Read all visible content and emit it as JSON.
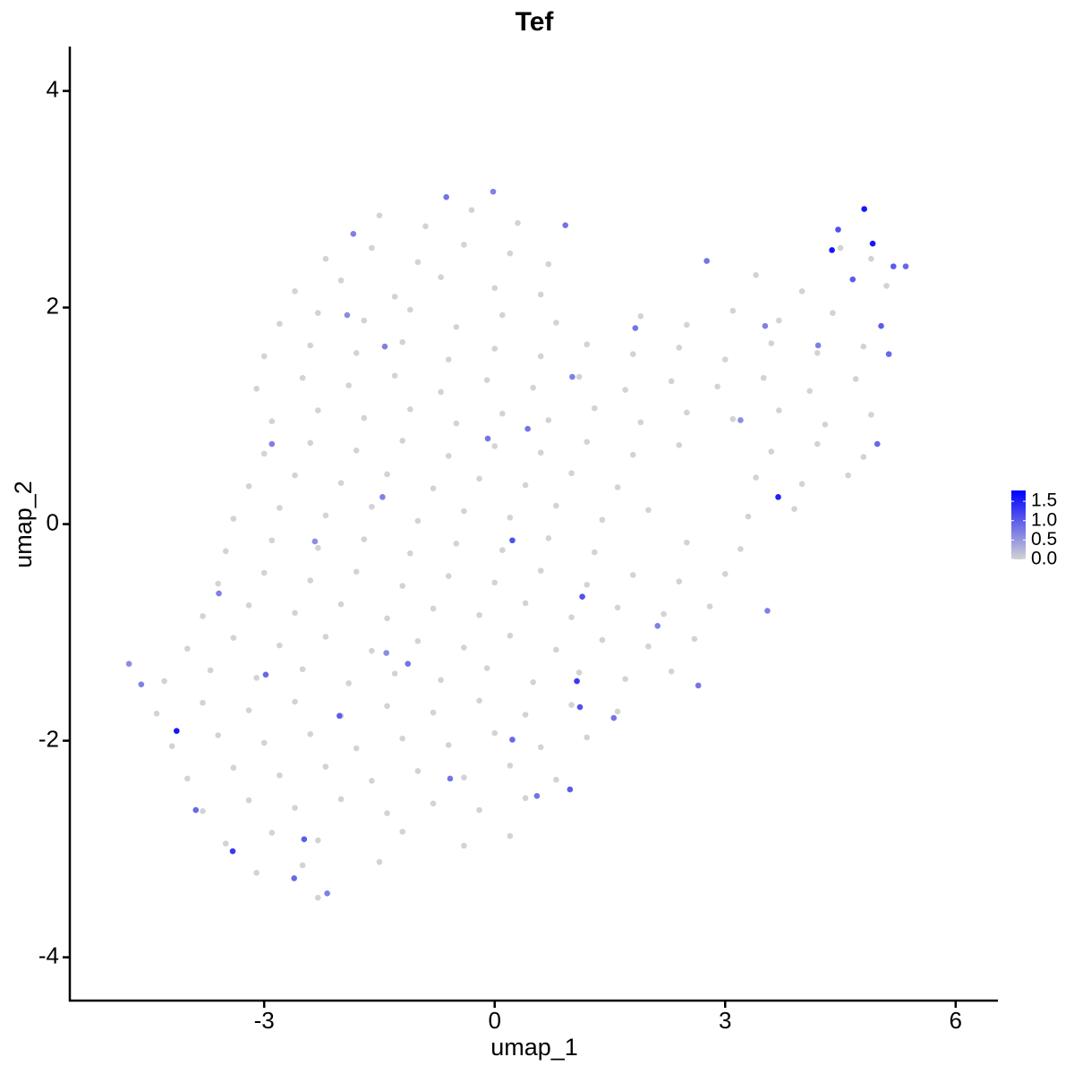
{
  "chart_data": {
    "type": "scatter",
    "title": "Tef",
    "xlabel": "umap_1",
    "ylabel": "umap_2",
    "xlim": [
      -5.53,
      6.55
    ],
    "ylim": [
      -4.4,
      4.41
    ],
    "xticks": [
      -3,
      0,
      3,
      6
    ],
    "yticks": [
      -4,
      -2,
      0,
      2,
      4
    ],
    "color_low": "#d3d3d3",
    "color_high": "#0000ff",
    "color_range": [
      0,
      1.78
    ],
    "colorbar_ticks": [
      {
        "value": 0,
        "label": "0.0"
      },
      {
        "value": 0.5,
        "label": "0.5"
      },
      {
        "value": 1,
        "label": "1.0"
      },
      1.5
    ],
    "x": [
      -1.5,
      -0.9,
      -0.3,
      0.3,
      -2.2,
      -1.6,
      -1.0,
      -0.4,
      0.2,
      0.7,
      4.5,
      4.9,
      -2.6,
      -2.0,
      -1.3,
      -0.7,
      0.0,
      0.6,
      3.4,
      4.0,
      5.1,
      -2.8,
      -2.3,
      -1.7,
      -1.1,
      -0.5,
      0.1,
      0.8,
      1.9,
      2.5,
      3.1,
      3.7,
      4.4,
      -3.0,
      -2.4,
      -1.8,
      -1.2,
      -0.6,
      0.0,
      0.6,
      1.2,
      1.8,
      2.4,
      3.0,
      3.6,
      4.2,
      4.8,
      -3.1,
      -2.5,
      -1.9,
      -1.3,
      -0.7,
      -0.1,
      0.5,
      1.1,
      1.7,
      2.3,
      2.9,
      3.5,
      4.1,
      4.7,
      -2.9,
      -2.3,
      -1.7,
      -1.1,
      -0.5,
      0.1,
      0.7,
      1.3,
      1.9,
      2.5,
      3.1,
      3.7,
      4.3,
      4.9,
      -3.0,
      -2.4,
      -1.8,
      -1.2,
      -0.6,
      0.0,
      0.6,
      1.2,
      1.8,
      2.4,
      3.6,
      4.2,
      4.8,
      -3.2,
      -2.6,
      -2.0,
      -1.4,
      -0.8,
      -0.2,
      0.4,
      1.0,
      1.6,
      3.4,
      4.0,
      4.6,
      -3.4,
      -2.8,
      -2.2,
      -1.6,
      -1.0,
      -0.4,
      0.2,
      0.8,
      1.4,
      2.0,
      3.3,
      3.9,
      -3.5,
      -2.9,
      -2.3,
      -1.7,
      -1.1,
      -0.5,
      0.1,
      0.7,
      1.3,
      2.5,
      3.2,
      -3.6,
      -3.0,
      -2.4,
      -1.8,
      -1.2,
      -0.6,
      0.0,
      0.6,
      1.2,
      1.8,
      2.4,
      3.0,
      -3.8,
      -3.2,
      -2.6,
      -2.0,
      -1.4,
      -0.8,
      -0.2,
      0.4,
      1.0,
      1.6,
      2.2,
      2.8,
      -4.0,
      -3.4,
      -2.8,
      -2.2,
      -1.6,
      -1.0,
      -0.4,
      0.2,
      0.8,
      1.4,
      2.0,
      2.6,
      -4.3,
      -3.7,
      -3.1,
      -2.5,
      -1.9,
      -1.3,
      -0.7,
      -0.1,
      0.5,
      1.1,
      1.7,
      2.3,
      -4.4,
      -3.8,
      -3.2,
      -2.6,
      -2.0,
      -1.4,
      -0.8,
      -0.2,
      0.4,
      1.0,
      1.6,
      -4.2,
      -3.6,
      -3.0,
      -2.4,
      -1.8,
      -1.2,
      -0.6,
      0.0,
      0.6,
      1.2,
      -4.0,
      -3.4,
      -2.8,
      -2.2,
      -1.6,
      -1.0,
      -0.4,
      0.2,
      0.8,
      -3.8,
      -3.2,
      -2.6,
      -2.0,
      -1.4,
      -0.8,
      -0.2,
      0.4,
      -3.5,
      -2.9,
      -2.3,
      -1.2,
      -0.4,
      0.2,
      -3.1,
      -2.5,
      -1.5,
      -2.3,
      -4.14,
      -3.41,
      4.81,
      4.92,
      4.39,
      3.69,
      1.07,
      1.14,
      0.23,
      1.11,
      -4.76,
      -4.6,
      5.19,
      5.35,
      5.13,
      4.98,
      4.66,
      5.03,
      4.47,
      4.21,
      -0.63,
      -0.02,
      0.92,
      -1.84,
      -2.61,
      -2.18,
      -2.48,
      -3.89,
      0.98,
      -0.58,
      0.23,
      -2.02,
      -2.98,
      -3.59,
      -2.34,
      -1.46,
      -0.09,
      0.43,
      1.01,
      1.83,
      2.76,
      3.52,
      3.2,
      2.65,
      3.55,
      2.12,
      1.55,
      -1.43,
      -2.9,
      -1.92,
      -1.13,
      0.55,
      -1.41
    ],
    "y": [
      2.85,
      2.75,
      2.9,
      2.78,
      2.45,
      2.55,
      2.42,
      2.58,
      2.5,
      2.4,
      2.55,
      2.45,
      2.15,
      2.25,
      2.1,
      2.28,
      2.18,
      2.12,
      2.3,
      2.15,
      2.2,
      1.85,
      1.95,
      1.88,
      1.98,
      1.82,
      1.93,
      1.86,
      1.92,
      1.84,
      1.97,
      1.88,
      1.95,
      1.55,
      1.65,
      1.58,
      1.68,
      1.52,
      1.62,
      1.55,
      1.66,
      1.57,
      1.63,
      1.52,
      1.67,
      1.58,
      1.64,
      1.25,
      1.35,
      1.28,
      1.37,
      1.22,
      1.33,
      1.26,
      1.36,
      1.24,
      1.32,
      1.27,
      1.35,
      1.23,
      1.34,
      0.95,
      1.05,
      0.98,
      1.06,
      0.93,
      1.02,
      0.96,
      1.07,
      0.94,
      1.03,
      0.97,
      1.05,
      0.92,
      1.01,
      0.65,
      0.75,
      0.68,
      0.77,
      0.63,
      0.72,
      0.66,
      0.76,
      0.64,
      0.73,
      0.67,
      0.74,
      0.62,
      0.35,
      0.45,
      0.38,
      0.46,
      0.33,
      0.42,
      0.36,
      0.47,
      0.34,
      0.43,
      0.37,
      0.45,
      0.05,
      0.15,
      0.08,
      0.16,
      0.03,
      0.12,
      0.06,
      0.17,
      0.04,
      0.13,
      0.07,
      0.14,
      -0.25,
      -0.15,
      -0.22,
      -0.14,
      -0.27,
      -0.18,
      -0.24,
      -0.13,
      -0.26,
      -0.17,
      -0.23,
      -0.55,
      -0.45,
      -0.52,
      -0.44,
      -0.57,
      -0.48,
      -0.54,
      -0.43,
      -0.56,
      -0.47,
      -0.53,
      -0.46,
      -0.85,
      -0.75,
      -0.82,
      -0.74,
      -0.87,
      -0.78,
      -0.84,
      -0.73,
      -0.86,
      -0.77,
      -0.83,
      -0.76,
      -1.15,
      -1.05,
      -1.12,
      -1.04,
      -1.17,
      -1.08,
      -1.14,
      -1.03,
      -1.16,
      -1.07,
      -1.13,
      -1.06,
      -1.45,
      -1.35,
      -1.42,
      -1.34,
      -1.47,
      -1.38,
      -1.44,
      -1.33,
      -1.46,
      -1.37,
      -1.43,
      -1.36,
      -1.75,
      -1.65,
      -1.72,
      -1.64,
      -1.77,
      -1.68,
      -1.74,
      -1.63,
      -1.76,
      -1.67,
      -1.73,
      -2.05,
      -1.95,
      -2.02,
      -1.94,
      -2.07,
      -1.98,
      -2.04,
      -1.93,
      -2.06,
      -1.97,
      -2.35,
      -2.25,
      -2.32,
      -2.24,
      -2.37,
      -2.28,
      -2.34,
      -2.23,
      -2.36,
      -2.65,
      -2.55,
      -2.62,
      -2.54,
      -2.67,
      -2.58,
      -2.64,
      -2.53,
      -2.95,
      -2.85,
      -2.92,
      -2.84,
      -2.97,
      -2.88,
      -3.22,
      -3.15,
      -3.12,
      -3.45,
      -1.91,
      -3.02,
      2.91,
      2.59,
      2.53,
      0.25,
      -1.45,
      -0.67,
      -0.15,
      -1.69,
      -1.29,
      -1.48,
      2.38,
      2.38,
      1.57,
      0.74,
      2.26,
      1.83,
      2.72,
      1.65,
      3.02,
      3.07,
      2.76,
      2.68,
      -3.27,
      -3.41,
      -2.91,
      -2.64,
      -2.45,
      -2.35,
      -1.99,
      -1.77,
      -1.39,
      -0.64,
      -0.16,
      0.25,
      0.79,
      0.88,
      1.36,
      1.81,
      2.43,
      1.83,
      0.96,
      -1.49,
      -0.8,
      -0.94,
      -1.79,
      1.64,
      0.74,
      1.93,
      -1.29,
      -2.51,
      -1.19
    ],
    "values": [
      0,
      0,
      0,
      0,
      0,
      0,
      0,
      0,
      0,
      0,
      0,
      0,
      0,
      0,
      0,
      0,
      0,
      0,
      0,
      0,
      0,
      0,
      0,
      0,
      0,
      0,
      0,
      0,
      0,
      0,
      0,
      0,
      0,
      0,
      0,
      0,
      0,
      0,
      0,
      0,
      0,
      0,
      0,
      0,
      0,
      0,
      0,
      0,
      0,
      0,
      0,
      0,
      0,
      0,
      0,
      0,
      0,
      0,
      0,
      0,
      0,
      0,
      0,
      0,
      0,
      0,
      0,
      0,
      0,
      0,
      0,
      0,
      0,
      0,
      0,
      0,
      0,
      0,
      0,
      0,
      0,
      0,
      0,
      0,
      0,
      0,
      0,
      0,
      0,
      0,
      0,
      0,
      0,
      0,
      0,
      0,
      0,
      0,
      0,
      0,
      0,
      0,
      0,
      0,
      0,
      0,
      0,
      0,
      0,
      0,
      0,
      0,
      0,
      0,
      0,
      0,
      0,
      0,
      0,
      0,
      0,
      0,
      0,
      0,
      0,
      0,
      0,
      0,
      0,
      0,
      0,
      0,
      0,
      0,
      0,
      0,
      0,
      0,
      0,
      0,
      0,
      0,
      0,
      0,
      0,
      0,
      0,
      0,
      0,
      0,
      0,
      0,
      0,
      0,
      0,
      0,
      0,
      0,
      0,
      0,
      0,
      0,
      0,
      0,
      0,
      0,
      0,
      0,
      0,
      0,
      0,
      0,
      0,
      0,
      0,
      0,
      0,
      0,
      0,
      0,
      0,
      0,
      0,
      0,
      0,
      0,
      0,
      0,
      0,
      0,
      0,
      0,
      0,
      0,
      0,
      0,
      0,
      0,
      0,
      0,
      0,
      0,
      0,
      0,
      0,
      0,
      0,
      0,
      0,
      0,
      0,
      0,
      0,
      0,
      0,
      0,
      0,
      0,
      0,
      1.6,
      1.3,
      1.6,
      1.6,
      1.6,
      1.5,
      1.3,
      1.1,
      1.1,
      1.1,
      0.6,
      0.7,
      1.0,
      0.9,
      0.9,
      0.9,
      1.0,
      1.0,
      1.1,
      0.7,
      0.8,
      0.7,
      0.8,
      0.7,
      0.9,
      0.7,
      1.0,
      0.9,
      1.0,
      0.8,
      0.9,
      1.0,
      0.9,
      0.7,
      0.6,
      0.7,
      0.8,
      0.8,
      0.7,
      0.8,
      0.8,
      0.7,
      0.6,
      0.8,
      0.7,
      0.7,
      0.8,
      0.7,
      0.7,
      0.6,
      0.8,
      0.8,
      0.6
    ]
  }
}
